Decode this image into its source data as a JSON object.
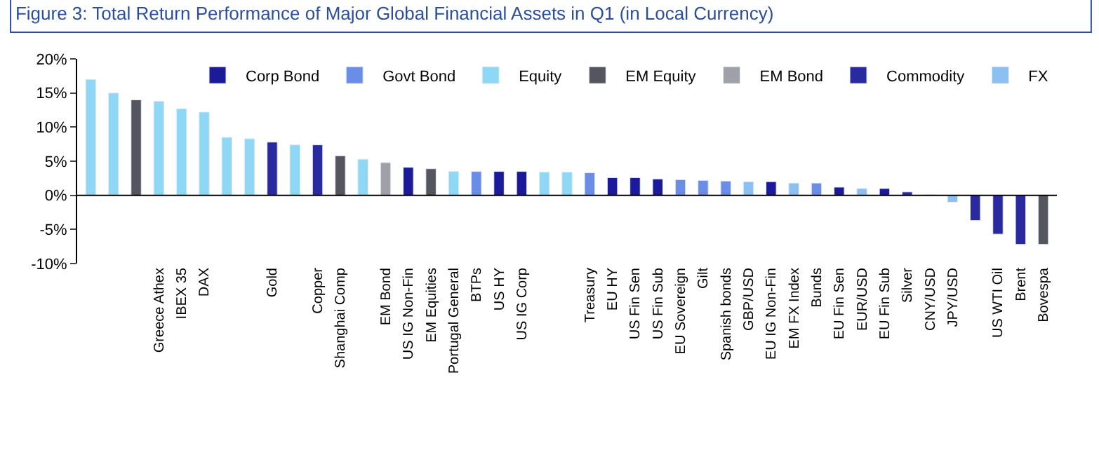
{
  "chart_data": {
    "type": "bar",
    "title": "Figure 3: Total Return Performance of Major Global Financial Assets in Q1 (in Local Currency)",
    "categories": [
      null,
      null,
      null,
      "Greece Athex",
      "IBEX 35",
      "DAX",
      null,
      null,
      "Gold",
      null,
      "Copper",
      "Shanghai Comp",
      null,
      "EM Bond",
      "US IG Non-Fin",
      "EM Equities",
      "Portugal General",
      "BTPs",
      "US HY",
      "US IG Corp",
      null,
      null,
      "Treasury",
      "EU HY",
      "US Fin Sen",
      "US Fin Sub",
      "EU Sovereign",
      "Gilt",
      "Spanish bonds",
      "GBP/USD",
      "EU IG Non-Fin",
      "EM FX Index",
      "Bunds",
      "EU Fin Sen",
      "EUR/USD",
      "EU Fin Sub",
      "Silver",
      "CNY/USD",
      "JPY/USD",
      null,
      "US WTI Oil",
      "Brent",
      "Bovespa"
    ],
    "series": [
      {
        "name": "Corp Bond",
        "color": "#1a1a9a",
        "values": [
          null,
          null,
          null,
          null,
          null,
          null,
          null,
          null,
          null,
          null,
          null,
          null,
          null,
          null,
          4.1,
          null,
          null,
          null,
          3.5,
          3.5,
          null,
          null,
          null,
          2.6,
          2.6,
          2.4,
          null,
          null,
          null,
          null,
          2.0,
          null,
          null,
          1.2,
          null,
          1.0,
          null,
          null,
          null,
          null,
          null,
          null,
          null
        ]
      },
      {
        "name": "Govt Bond",
        "color": "#6a8ee8",
        "values": [
          null,
          null,
          null,
          null,
          null,
          null,
          null,
          null,
          null,
          null,
          null,
          null,
          null,
          null,
          null,
          null,
          null,
          3.5,
          null,
          null,
          null,
          null,
          3.3,
          null,
          null,
          null,
          2.3,
          2.2,
          2.1,
          null,
          null,
          null,
          1.8,
          null,
          null,
          null,
          null,
          null,
          null,
          null,
          null,
          null,
          null
        ]
      },
      {
        "name": "Equity",
        "color": "#8fd8f5",
        "values": [
          17.0,
          15.0,
          null,
          13.8,
          12.7,
          12.2,
          8.5,
          8.3,
          null,
          7.4,
          null,
          null,
          5.3,
          null,
          null,
          null,
          3.5,
          null,
          null,
          null,
          3.4,
          3.4,
          null,
          null,
          null,
          null,
          null,
          null,
          null,
          null,
          null,
          null,
          null,
          null,
          null,
          null,
          null,
          null,
          null,
          null,
          null,
          null,
          null
        ]
      },
      {
        "name": "EM Equity",
        "color": "#55555f",
        "values": [
          null,
          null,
          14.0,
          null,
          null,
          null,
          null,
          null,
          null,
          null,
          null,
          5.8,
          null,
          null,
          null,
          3.9,
          null,
          null,
          null,
          null,
          null,
          null,
          null,
          null,
          null,
          null,
          null,
          null,
          null,
          null,
          null,
          null,
          null,
          null,
          null,
          null,
          null,
          null,
          null,
          null,
          null,
          null,
          -7.2
        ]
      },
      {
        "name": "EM Bond",
        "color": "#a0a0a8",
        "values": [
          null,
          null,
          null,
          null,
          null,
          null,
          null,
          null,
          null,
          null,
          null,
          null,
          null,
          4.8,
          null,
          null,
          null,
          null,
          null,
          null,
          null,
          null,
          null,
          null,
          null,
          null,
          null,
          null,
          null,
          null,
          null,
          null,
          null,
          null,
          null,
          null,
          null,
          null,
          null,
          null,
          null,
          null,
          null
        ]
      },
      {
        "name": "Commodity",
        "color": "#2a2aa0",
        "values": [
          null,
          null,
          null,
          null,
          null,
          null,
          null,
          null,
          7.8,
          null,
          7.4,
          null,
          null,
          null,
          null,
          null,
          null,
          null,
          null,
          null,
          null,
          null,
          null,
          null,
          null,
          null,
          null,
          null,
          null,
          null,
          null,
          null,
          null,
          null,
          null,
          null,
          0.5,
          null,
          null,
          -3.7,
          -5.7,
          -7.2,
          null
        ]
      },
      {
        "name": "FX",
        "color": "#8cc0f0",
        "values": [
          null,
          null,
          null,
          null,
          null,
          null,
          null,
          null,
          null,
          null,
          null,
          null,
          null,
          null,
          null,
          null,
          null,
          null,
          null,
          null,
          null,
          null,
          null,
          null,
          null,
          null,
          null,
          null,
          null,
          2.0,
          null,
          1.8,
          null,
          null,
          1.0,
          null,
          null,
          0.1,
          -1.0,
          null,
          null,
          null,
          null
        ]
      }
    ],
    "ylim": [
      -10,
      20
    ],
    "yticks": [
      {
        "value": -10,
        "label": "-10%"
      },
      {
        "value": -5,
        "label": "-5%"
      },
      {
        "value": 0,
        "label": "0%"
      },
      {
        "value": 5,
        "label": "5%"
      },
      {
        "value": 10,
        "label": "10%"
      },
      {
        "value": 15,
        "label": "15%"
      },
      {
        "value": 20,
        "label": "20%"
      }
    ],
    "legend": "top right"
  }
}
